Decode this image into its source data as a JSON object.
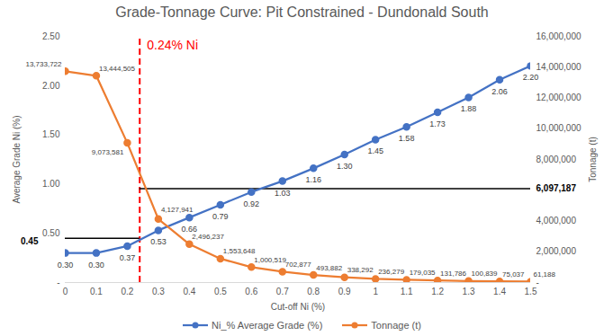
{
  "chart_data": {
    "type": "line",
    "title": "Grade-Tonnage Curve: Pit Constrained - Dundonald South",
    "x_label": "Cut-off Ni (%)",
    "y_label": "Average Grade Ni (%)",
    "y2_label": "Tonnage (t)",
    "x": [
      0,
      0.1,
      0.2,
      0.3,
      0.4,
      0.5,
      0.6,
      0.7,
      0.8,
      0.9,
      1,
      1.1,
      1.2,
      1.3,
      1.4,
      1.5
    ],
    "xlim": [
      0,
      1.5
    ],
    "xticks": [
      0,
      0.1,
      0.2,
      0.3,
      0.4,
      0.5,
      0.6,
      0.7,
      0.8,
      0.9,
      1,
      1.1,
      1.2,
      1.3,
      1.4,
      1.5
    ],
    "ylim": [
      0,
      2.5
    ],
    "yticks": [
      {
        "value": 0,
        "label": "-"
      },
      {
        "value": 0.5,
        "label": "0.50"
      },
      {
        "value": 1,
        "label": "1.00"
      },
      {
        "value": 1.5,
        "label": "1.50"
      },
      {
        "value": 2,
        "label": "2.00"
      },
      {
        "value": 2.5,
        "label": "2.50"
      }
    ],
    "y2lim": [
      0,
      16000000
    ],
    "y2ticks": [
      {
        "value": 0,
        "label": "-"
      },
      {
        "value": 2000000,
        "label": "2,000,000"
      },
      {
        "value": 4000000,
        "label": "4,000,000"
      },
      {
        "value": 8000000,
        "label": "8,000,000"
      },
      {
        "value": 10000000,
        "label": "10,000,000"
      },
      {
        "value": 12000000,
        "label": "12,000,000"
      },
      {
        "value": 14000000,
        "label": "14,000,000"
      },
      {
        "value": 16000000,
        "label": "16,000,000"
      }
    ],
    "grid": false,
    "legend": "bottom",
    "data_labels": true,
    "series": [
      {
        "name": "Ni_% Average Grade (%)",
        "color": "#4472C4",
        "marker": "circle",
        "values": [
          0.3,
          0.3,
          0.37,
          0.53,
          0.66,
          0.79,
          0.92,
          1.03,
          1.16,
          1.3,
          1.45,
          1.58,
          1.73,
          1.88,
          2.06,
          2.2
        ],
        "value_labels": [
          "0.30",
          "0.30",
          "0.37",
          "0.53",
          "0.66",
          "0.79",
          "0.92",
          "1.03",
          "1.16",
          "1.30",
          "1.45",
          "1.58",
          "1.73",
          "1.88",
          "2.06",
          "2.20"
        ]
      },
      {
        "name": "Tonnage (t)",
        "color": "#ED7D31",
        "marker": "circle",
        "axis": "y2",
        "values": [
          13733722,
          13444505,
          9073581,
          4127941,
          2496237,
          1553648,
          1000519,
          702877,
          493882,
          338292,
          236279,
          179035,
          131786,
          100839,
          75037,
          61188
        ],
        "value_labels": [
          "13,733,722",
          "13,444,505",
          "9,073,581",
          "4,127,941",
          "2,496,237",
          "1,553,648",
          "1,000,519",
          "702,877",
          "493,882",
          "338,292",
          "236,279",
          "179,035",
          "131,786",
          "100,839",
          "75,037",
          "61,188"
        ]
      }
    ],
    "annotations": [
      {
        "type": "vline",
        "x": 0.24,
        "label": "0.24% Ni",
        "color": "#FF0000",
        "line_style": "dashed"
      },
      {
        "type": "hline",
        "y": 0.45,
        "label": "0.45",
        "x_range": [
          0,
          0.24
        ],
        "color": "#000000"
      },
      {
        "type": "hline",
        "y": 6097187,
        "axis": "y2",
        "label": "6,097,187",
        "x_range": [
          0.24,
          1.5
        ],
        "color": "#000000"
      }
    ]
  }
}
